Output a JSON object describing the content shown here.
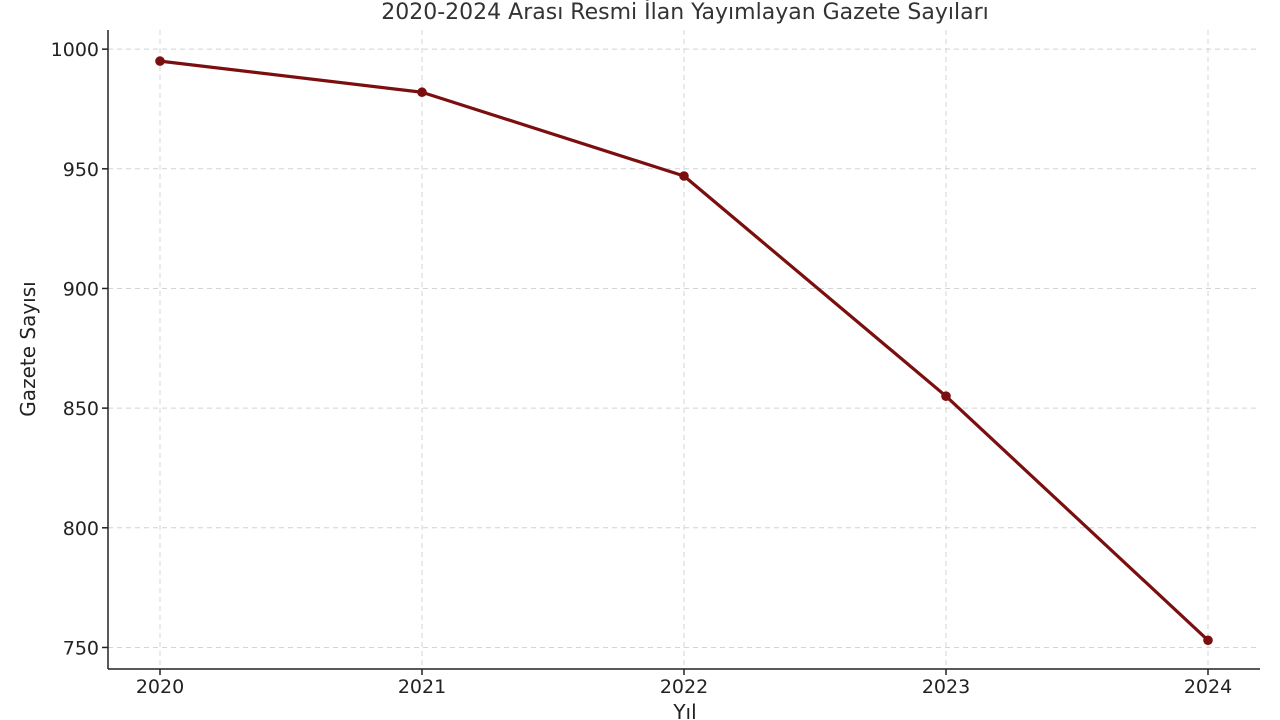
{
  "chart_data": {
    "type": "line",
    "title": "2020-2024 Arası Resmi İlan Yayımlayan Gazete Sayıları",
    "xlabel": "Yıl",
    "ylabel": "Gazete Sayısı",
    "categories": [
      "2020",
      "2021",
      "2022",
      "2023",
      "2024"
    ],
    "series": [
      {
        "values": [
          995,
          982,
          947,
          855,
          753
        ],
        "color": "#7b0f0f"
      }
    ],
    "ylim": [
      741,
      1008
    ],
    "yticks": [
      750,
      800,
      850,
      900,
      950,
      1000
    ],
    "grid": true,
    "legend": "none"
  }
}
